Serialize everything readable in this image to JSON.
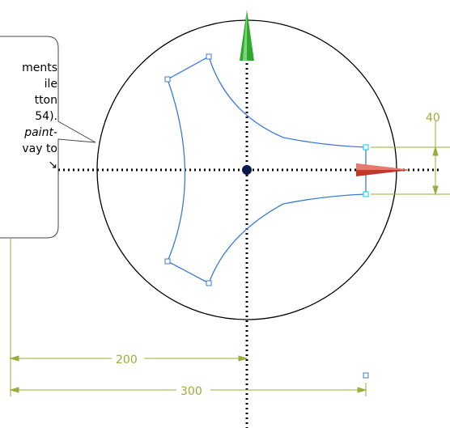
{
  "callout": {
    "lines": [
      "ments",
      "ile",
      "tton",
      "54).",
      "paint-",
      "vay to",
      "↘"
    ],
    "italic_lines": [
      4
    ]
  },
  "dimensions": {
    "horizontal_200": "200",
    "horizontal_300": "300",
    "vertical_40": "40"
  },
  "colors": {
    "profile": "#3a7bd5",
    "dimension": "#9aad3a",
    "axis_y_arrow": "#2fa82f",
    "axis_x_arrow": "#c0392b",
    "circle": "#000000",
    "selected_point": "#00c8ff"
  },
  "icons": [
    "y-axis-arrow-icon",
    "x-axis-arrow-icon",
    "origin-point-icon"
  ]
}
